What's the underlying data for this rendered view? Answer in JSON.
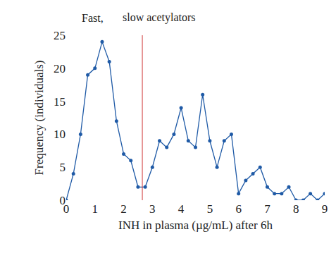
{
  "chart_data": {
    "type": "line",
    "annotations": [
      "Fast,",
      "slow acetylators"
    ],
    "x_label": "INH in plasma (µg/mL) after 6h",
    "y_label": "Frequency (individuals)",
    "x": [
      0,
      0.25,
      0.5,
      0.75,
      1.0,
      1.25,
      1.5,
      1.75,
      2.0,
      2.25,
      2.5,
      2.75,
      3.0,
      3.25,
      3.5,
      3.75,
      4.0,
      4.25,
      4.5,
      4.75,
      5.0,
      5.25,
      5.5,
      5.75,
      6.0,
      6.25,
      6.5,
      6.75,
      7.0,
      7.25,
      7.5,
      7.75,
      8.0,
      8.25,
      8.5,
      8.75,
      9.0
    ],
    "values": [
      0,
      4,
      10,
      19,
      20,
      24,
      21,
      12,
      7,
      6,
      2,
      2,
      5,
      9,
      8,
      10,
      14,
      9,
      8,
      16,
      9,
      5,
      9,
      10,
      1,
      3,
      4,
      5,
      2,
      1,
      1,
      2,
      0,
      0,
      1,
      0,
      1
    ],
    "color": "#1f5aa6",
    "marker": "circle",
    "line_style": "solid",
    "divider": {
      "x": 2.65,
      "color": "#d03a3a"
    },
    "xlim": [
      0,
      9
    ],
    "ylim": [
      0,
      25
    ],
    "xticks": [
      0,
      1,
      2,
      3,
      4,
      5,
      6,
      7,
      8,
      9
    ],
    "yticks": [
      0,
      5,
      10,
      15,
      20,
      25
    ],
    "grid": false
  }
}
